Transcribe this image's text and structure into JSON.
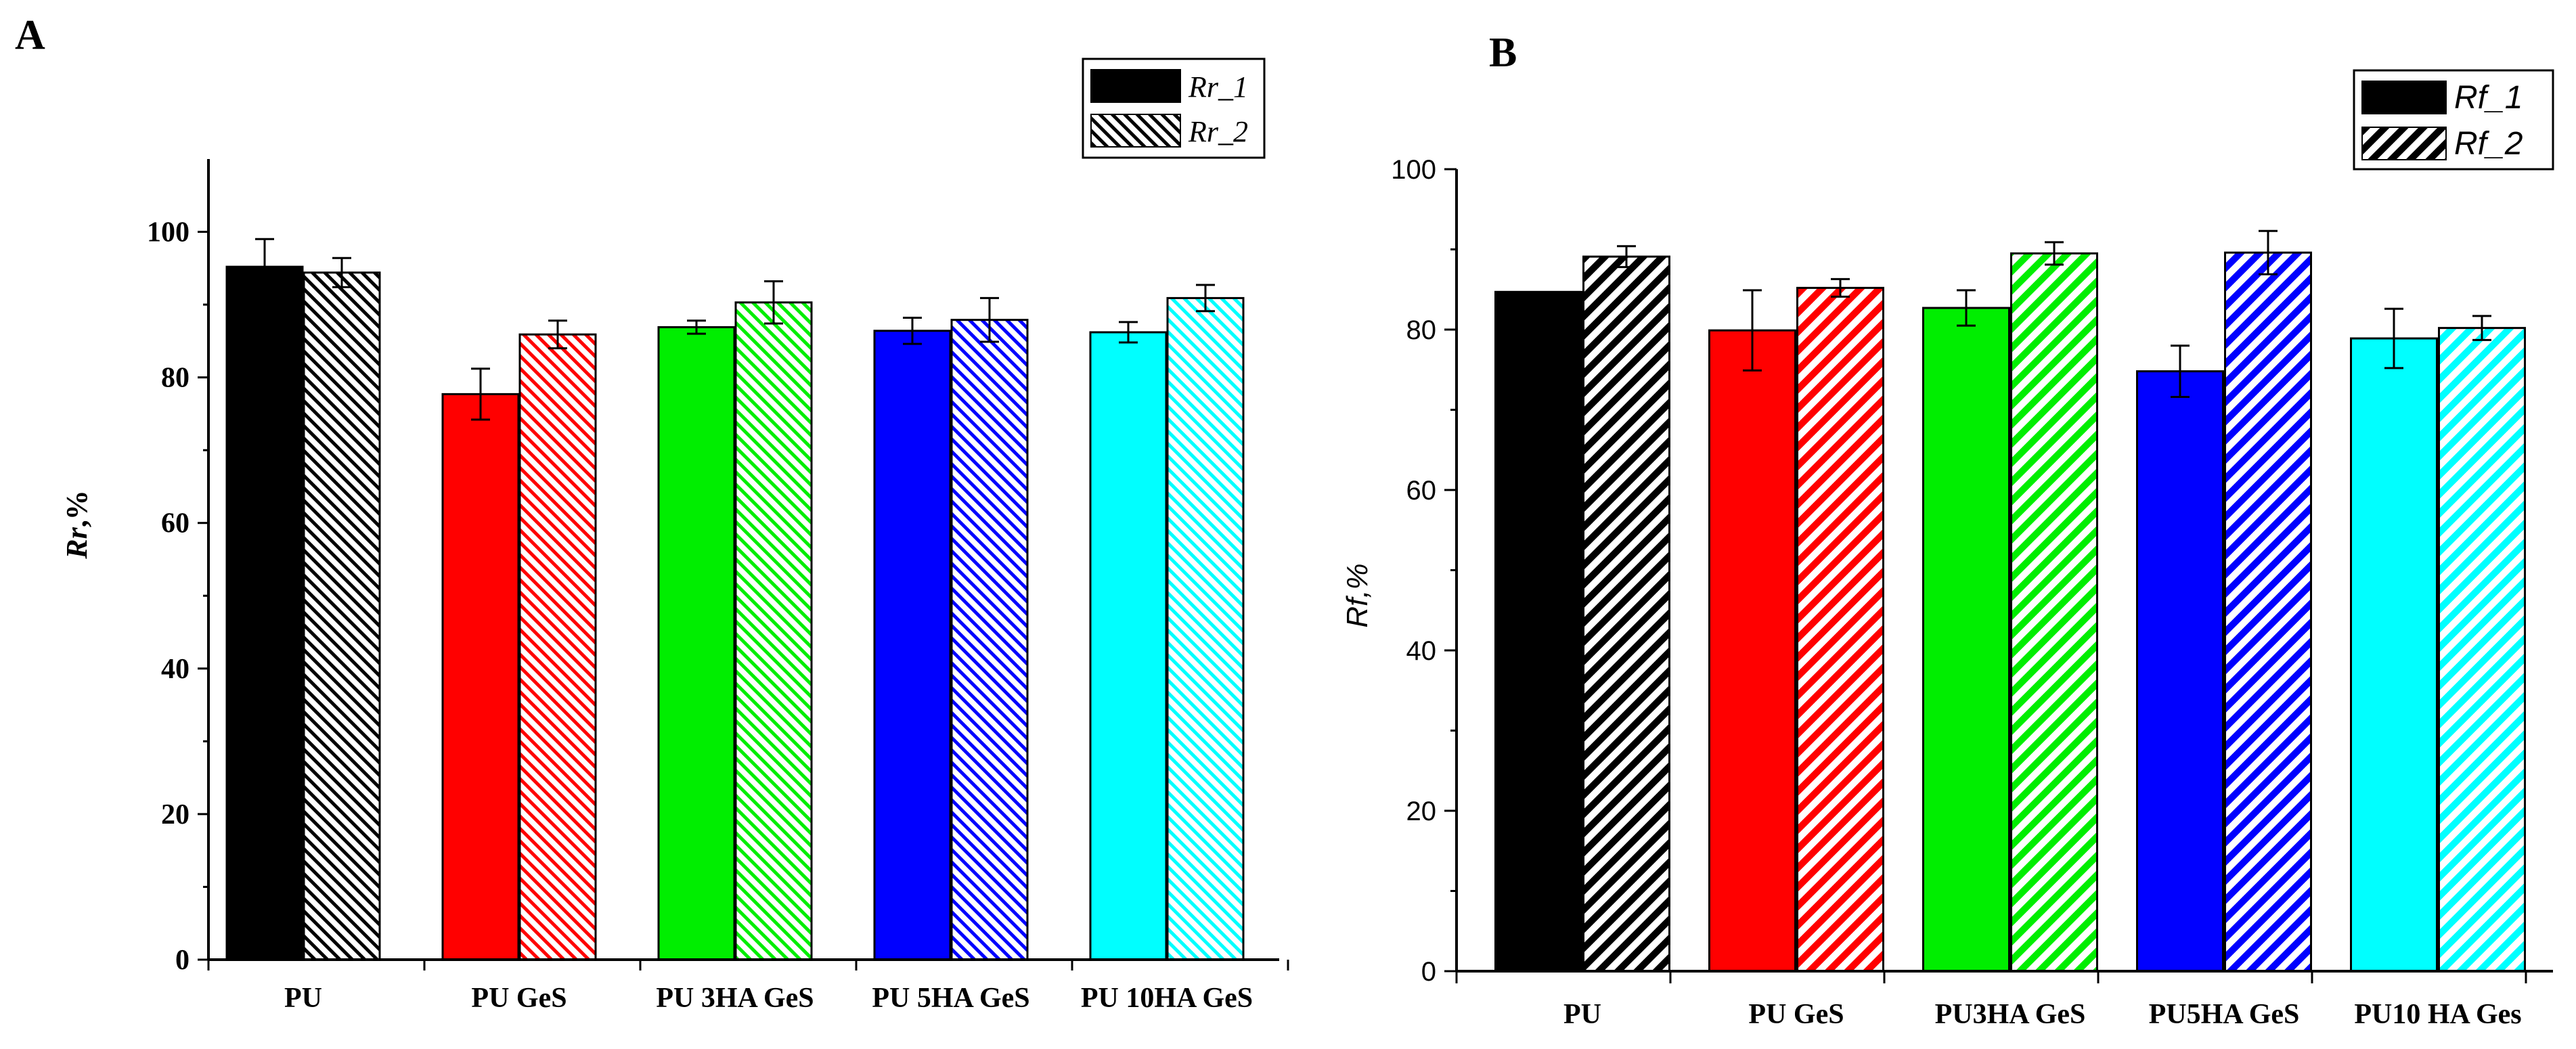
{
  "chart_data": [
    {
      "panel_label": "A",
      "type": "bar",
      "categories": [
        "PU",
        "PU GeS",
        "PU 3HA GeS",
        "PU 5HA GeS",
        "PU 10HA GeS"
      ],
      "category_colors": [
        "#000000",
        "#ff0000",
        "#00ee00",
        "#0000ff",
        "#00ffff"
      ],
      "series": [
        {
          "name": "Rr_1",
          "pattern": "solid",
          "values": [
            95.2,
            77.7,
            86.9,
            86.4,
            86.2
          ],
          "errors": [
            3.8,
            3.5,
            0.9,
            1.8,
            1.4
          ]
        },
        {
          "name": "Rr_2",
          "pattern": "hatch",
          "values": [
            94.4,
            85.9,
            90.3,
            87.9,
            90.9
          ],
          "errors": [
            2.0,
            1.9,
            2.9,
            3.0,
            1.8
          ]
        }
      ],
      "title": "",
      "xlabel": "",
      "ylabel_main": "Rr",
      "ylabel_suffix": ",%",
      "ylim": [
        0,
        110
      ],
      "yticks": [
        0,
        20,
        40,
        60,
        80,
        100
      ],
      "legend_position": "top-right",
      "grid": false
    },
    {
      "panel_label": "B",
      "type": "bar",
      "categories": [
        "PU",
        "PU GeS",
        "PU3HA GeS",
        "PU5HA GeS",
        "PU10 HA Ges"
      ],
      "category_colors": [
        "#000000",
        "#ff0000",
        "#00ee00",
        "#0000ff",
        "#00ffff"
      ],
      "series": [
        {
          "name": "Rf_1",
          "pattern": "solid",
          "values": [
            84.7,
            79.9,
            82.7,
            74.8,
            78.9
          ],
          "errors": [
            0,
            5.0,
            2.2,
            3.2,
            3.7
          ]
        },
        {
          "name": "Rf_2",
          "pattern": "hatch",
          "values": [
            89.1,
            85.2,
            89.5,
            89.6,
            80.2
          ],
          "errors": [
            1.3,
            1.1,
            1.4,
            2.7,
            1.5
          ]
        }
      ],
      "title": "",
      "xlabel": "",
      "ylabel": "Rf,%",
      "ylim": [
        0,
        100
      ],
      "yticks": [
        0,
        20,
        40,
        60,
        80,
        100
      ],
      "legend_position": "top-right",
      "grid": false
    }
  ]
}
